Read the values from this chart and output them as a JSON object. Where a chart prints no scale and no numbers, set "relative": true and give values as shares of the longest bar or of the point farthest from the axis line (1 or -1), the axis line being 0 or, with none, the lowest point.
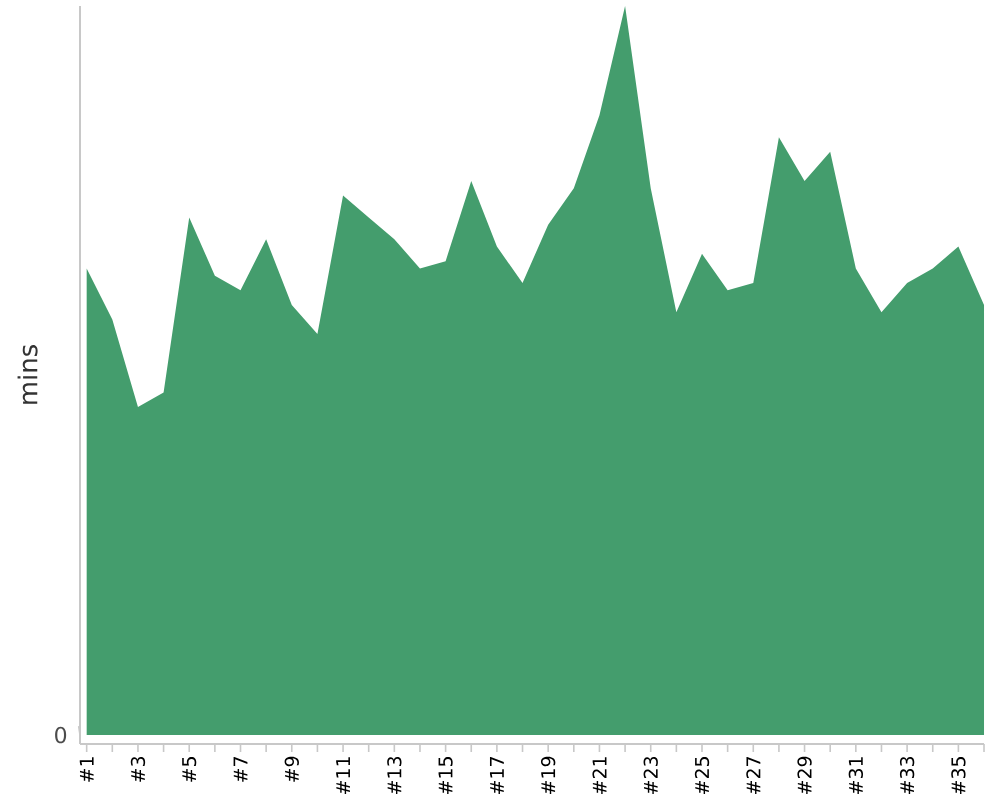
{
  "chart_data": {
    "type": "area",
    "relative": true,
    "ylabel": "mins",
    "color": "#449d6d",
    "categories": [
      "#1",
      null,
      "#3",
      null,
      "#5",
      null,
      "#7",
      null,
      "#9",
      null,
      "#11",
      null,
      "#13",
      null,
      "#15",
      null,
      "#17",
      null,
      "#19",
      null,
      "#21",
      null,
      "#23",
      null,
      "#25",
      null,
      "#27",
      null,
      "#29",
      null,
      "#31",
      null,
      "#33",
      null,
      "#35",
      null
    ],
    "values": [
      0.64,
      0.57,
      0.45,
      0.47,
      0.71,
      0.63,
      0.61,
      0.68,
      0.59,
      0.55,
      0.74,
      0.71,
      0.68,
      0.64,
      0.65,
      0.76,
      0.67,
      0.62,
      0.7,
      0.75,
      0.85,
      1,
      0.75,
      0.58,
      0.66,
      0.61,
      0.62,
      0.82,
      0.76,
      0.8,
      0.64,
      0.58,
      0.62,
      0.64,
      0.67,
      0.59
    ],
    "annotations": [
      "0"
    ]
  }
}
